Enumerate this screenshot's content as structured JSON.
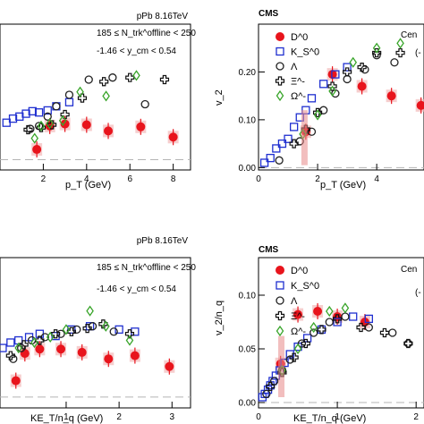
{
  "colors": {
    "D0": "#e8141c",
    "KS0": "#1f2fd0",
    "Lambda": "#222222",
    "Xi": "#111111",
    "Omega": "#39a52a",
    "syst_band": "#f2b9b9",
    "baseline": "#b5b5b5"
  },
  "chart_data": [
    {
      "type": "scatter",
      "panel": "top-left",
      "title": "pPb 8.16TeV",
      "annotations": [
        "185 ≤ N_trk^offline < 250",
        "-1.46 < y_cm < 0.54"
      ],
      "xlabel": "p_T (GeV)",
      "ylabel": "",
      "xlim": [
        0,
        8.8
      ],
      "ylim": [
        -0.025,
        0.33
      ],
      "xticks": [
        "2",
        "4",
        "6",
        "8"
      ],
      "series": [
        {
          "name": "D0",
          "x": [
            1.7,
            2.3,
            3.0,
            4.0,
            5.0,
            6.5,
            8.0
          ],
          "y": [
            0.025,
            0.082,
            0.087,
            0.085,
            0.07,
            0.08,
            0.055
          ]
        },
        {
          "name": "KS0",
          "x": [
            0.3,
            0.6,
            0.9,
            1.2,
            1.5,
            1.8,
            2.2,
            2.6,
            3.2
          ],
          "y": [
            0.09,
            0.1,
            0.105,
            0.112,
            0.118,
            0.115,
            0.12,
            0.13,
            0.14
          ]
        },
        {
          "name": "Lambda",
          "x": [
            1.4,
            1.8,
            2.2,
            2.6,
            3.2,
            4.1,
            5.2,
            6.7
          ],
          "y": [
            0.075,
            0.082,
            0.105,
            0.13,
            0.158,
            0.195,
            0.2,
            0.135
          ]
        },
        {
          "name": "Xi",
          "x": [
            1.3,
            1.9,
            2.4,
            3.0,
            3.8,
            4.8,
            6.0,
            7.6
          ],
          "y": [
            0.073,
            0.078,
            0.085,
            0.11,
            0.15,
            0.19,
            0.2,
            0.195
          ]
        },
        {
          "name": "Omega",
          "x": [
            1.6,
            1.9,
            2.3,
            2.9,
            3.7,
            4.9,
            6.3
          ],
          "y": [
            0.052,
            0.082,
            0.088,
            0.095,
            0.165,
            0.155,
            0.205
          ]
        }
      ]
    },
    {
      "type": "scatter",
      "panel": "top-right",
      "title": "CMS",
      "label_partial": "Cen",
      "label_partial_2": "(-",
      "xlabel": "p_T (GeV)",
      "ylabel": "v_2",
      "xlim": [
        0,
        5.6
      ],
      "ylim": [
        -0.005,
        0.3
      ],
      "xticks": [
        "0",
        "2",
        "4"
      ],
      "yticks": [
        "0.00",
        "0.10",
        "0.20"
      ],
      "legend": [
        "D^0",
        "K_S^0",
        "Λ",
        "Ξ^-",
        "Ω^-"
      ],
      "series": [
        {
          "name": "D0",
          "x": [
            1.6,
            2.5,
            3.5,
            4.5,
            5.5
          ],
          "y": [
            0.075,
            0.195,
            0.17,
            0.15,
            0.13
          ]
        },
        {
          "name": "KS0",
          "x": [
            0.2,
            0.4,
            0.6,
            0.8,
            1.0,
            1.2,
            1.4,
            1.6,
            1.8,
            2.2,
            2.6,
            3.0
          ],
          "y": [
            0.01,
            0.02,
            0.04,
            0.05,
            0.06,
            0.085,
            0.105,
            0.12,
            0.145,
            0.175,
            0.195,
            0.21
          ]
        },
        {
          "name": "Lambda",
          "x": [
            0.7,
            1.4,
            1.8,
            2.2,
            2.6,
            3.0,
            3.6,
            4.0,
            4.6
          ],
          "y": [
            0.015,
            0.055,
            0.075,
            0.12,
            0.155,
            0.185,
            0.205,
            0.235,
            0.22
          ]
        },
        {
          "name": "Xi",
          "x": [
            1.2,
            1.6,
            2.0,
            2.5,
            3.0,
            3.5,
            4.0,
            4.8
          ],
          "y": [
            0.05,
            0.08,
            0.115,
            0.17,
            0.2,
            0.21,
            0.24,
            0.24
          ]
        },
        {
          "name": "Omega",
          "x": [
            1.5,
            2.0,
            2.5,
            3.2,
            4.0,
            4.8
          ],
          "y": [
            0.07,
            0.11,
            0.16,
            0.22,
            0.25,
            0.26
          ]
        }
      ]
    },
    {
      "type": "scatter",
      "panel": "bottom-left",
      "title": "pPb 8.16TeV",
      "annotations": [
        "185 ≤ N_trk^offline < 250",
        "-1.46 < y_cm < 0.54"
      ],
      "xlabel": "KE_T/n_q (GeV)",
      "ylabel": "",
      "xlim": [
        -0.25,
        3.35
      ],
      "ylim": [
        -0.01,
        0.128
      ],
      "xticks": [
        "1",
        "2",
        "3"
      ],
      "series": [
        {
          "name": "D0",
          "x": [
            0.05,
            0.22,
            0.5,
            0.9,
            1.3,
            1.8,
            2.3,
            2.95
          ],
          "y": [
            0.015,
            0.04,
            0.044,
            0.044,
            0.041,
            0.035,
            0.038,
            0.028
          ]
        },
        {
          "name": "KS0",
          "x": [
            -0.2,
            -0.05,
            0.1,
            0.3,
            0.5,
            0.8,
            1.1,
            1.45,
            2.0,
            2.3
          ],
          "y": [
            0.045,
            0.05,
            0.052,
            0.055,
            0.058,
            0.056,
            0.062,
            0.065,
            0.062,
            0.06
          ]
        },
        {
          "name": "Lambda",
          "x": [
            0.0,
            0.15,
            0.35,
            0.6,
            0.9,
            1.2,
            1.5,
            1.9
          ],
          "y": [
            0.035,
            0.045,
            0.052,
            0.055,
            0.058,
            0.062,
            0.065,
            0.06
          ]
        },
        {
          "name": "Xi",
          "x": [
            -0.05,
            0.2,
            0.5,
            0.8,
            1.1,
            1.4,
            1.7,
            2.2
          ],
          "y": [
            0.038,
            0.048,
            0.052,
            0.058,
            0.06,
            0.063,
            0.067,
            0.058
          ]
        },
        {
          "name": "Omega",
          "x": [
            0.1,
            0.4,
            0.7,
            1.0,
            1.45,
            1.75,
            2.2
          ],
          "y": [
            0.045,
            0.05,
            0.055,
            0.062,
            0.079,
            0.065,
            0.052
          ]
        }
      ]
    },
    {
      "type": "scatter",
      "panel": "bottom-right",
      "title": "CMS",
      "label_partial": "Cen",
      "label_partial_2": "(-",
      "xlabel": "KE_T/n_q (GeV)",
      "ylabel": "v_2/n_q",
      "xlim": [
        0,
        2.1
      ],
      "ylim": [
        -0.005,
        0.135
      ],
      "xticks": [
        "0",
        "1",
        "2"
      ],
      "yticks": [
        "0.00",
        "0.05",
        "0.10"
      ],
      "legend": [
        "D^0",
        "K_S^0",
        "Λ",
        "Ξ^-",
        "Ω^-"
      ],
      "series": [
        {
          "name": "D0",
          "x": [
            0.28,
            0.5,
            0.75,
            1.0,
            1.35
          ],
          "y": [
            0.036,
            0.082,
            0.085,
            0.08,
            0.075
          ]
        },
        {
          "name": "KS0",
          "x": [
            0.05,
            0.08,
            0.12,
            0.15,
            0.18,
            0.22,
            0.27,
            0.33,
            0.4,
            0.5,
            0.62,
            0.8,
            1.0,
            1.2,
            1.4
          ],
          "y": [
            0.005,
            0.008,
            0.012,
            0.016,
            0.02,
            0.025,
            0.03,
            0.037,
            0.045,
            0.052,
            0.06,
            0.068,
            0.075,
            0.08,
            0.078
          ]
        },
        {
          "name": "Lambda",
          "x": [
            0.1,
            0.2,
            0.3,
            0.4,
            0.55,
            0.7,
            0.9,
            1.1,
            1.4,
            1.7,
            1.9
          ],
          "y": [
            0.008,
            0.02,
            0.03,
            0.04,
            0.055,
            0.065,
            0.075,
            0.08,
            0.07,
            0.065,
            0.055
          ]
        },
        {
          "name": "Xi",
          "x": [
            0.15,
            0.3,
            0.45,
            0.6,
            0.8,
            1.0,
            1.3,
            1.6,
            1.9
          ],
          "y": [
            0.015,
            0.028,
            0.042,
            0.055,
            0.068,
            0.078,
            0.07,
            0.065,
            0.055
          ]
        },
        {
          "name": "Omega",
          "x": [
            0.3,
            0.5,
            0.7,
            0.9,
            1.1
          ],
          "y": [
            0.03,
            0.05,
            0.07,
            0.085,
            0.088
          ]
        }
      ]
    }
  ]
}
